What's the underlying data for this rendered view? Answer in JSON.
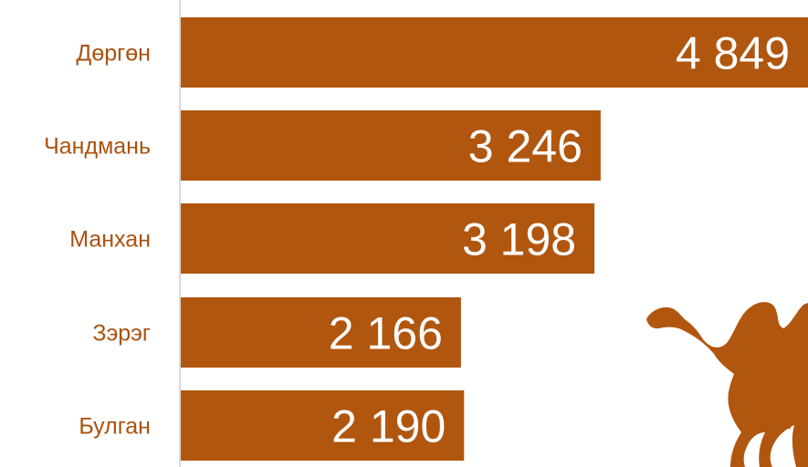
{
  "chart_data": {
    "type": "bar",
    "orientation": "horizontal",
    "categories": [
      "Дөргөн",
      "Чандмань",
      "Манхан",
      "Зэрэг",
      "Булган"
    ],
    "values": [
      4849,
      3246,
      3198,
      2166,
      2190
    ],
    "value_labels": [
      "4 849",
      "3 246",
      "3 198",
      "2 166",
      "2 190"
    ],
    "xlim": [
      0,
      4849
    ],
    "grid": false,
    "legend": "none"
  },
  "colors": {
    "bar": "#b1560f",
    "category_text": "#a8520e",
    "value_text": "#ffffff",
    "axis_line": "#d9d9d9",
    "decoration": "#b1560f"
  },
  "decoration": {
    "icon": "camel-icon"
  }
}
